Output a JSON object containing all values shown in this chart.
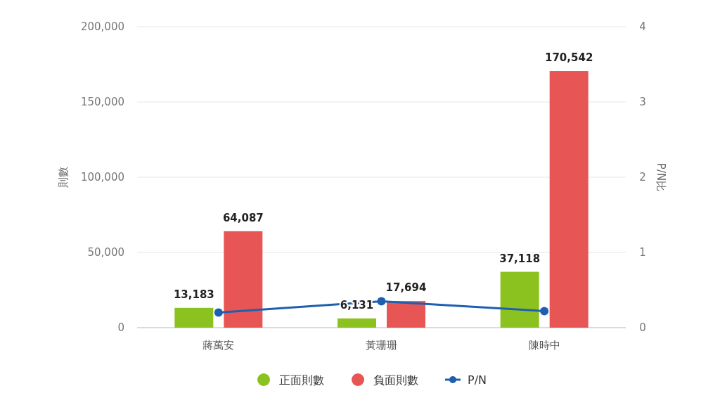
{
  "chart_data": {
    "type": "bar",
    "categories": [
      "蔣萬安",
      "黃珊珊",
      "陳時中"
    ],
    "ylabel": "則數",
    "y2label": "P/N比",
    "ylim": [
      0,
      200000
    ],
    "yticks": [
      {
        "value": 0,
        "label": "0"
      },
      {
        "value": 50000,
        "label": "50,000"
      },
      {
        "value": 100000,
        "label": "100,000"
      },
      {
        "value": 150000,
        "label": "150,000"
      },
      {
        "value": 200000,
        "label": "200,000"
      }
    ],
    "y2lim": [
      0,
      4
    ],
    "y2ticks": [
      0,
      1,
      2,
      3,
      4
    ],
    "grid": "y",
    "legend": "bottom",
    "series": [
      {
        "name": "正面則數",
        "color": "#8cc21f",
        "values": [
          13183,
          6131,
          37118
        ],
        "value_labels": [
          "13,183",
          "6,131",
          "37,118"
        ]
      },
      {
        "name": "負面則數",
        "color": "#e85555",
        "values": [
          64087,
          17694,
          170542
        ],
        "value_labels": [
          "64,087",
          "17,694",
          "170,542"
        ]
      },
      {
        "name": "P/N",
        "type": "line",
        "axis": "y2",
        "color": "#1f5fb0",
        "marker": "circle",
        "line_style": "solid",
        "values": [
          0.2,
          0.35,
          0.22
        ]
      }
    ]
  }
}
